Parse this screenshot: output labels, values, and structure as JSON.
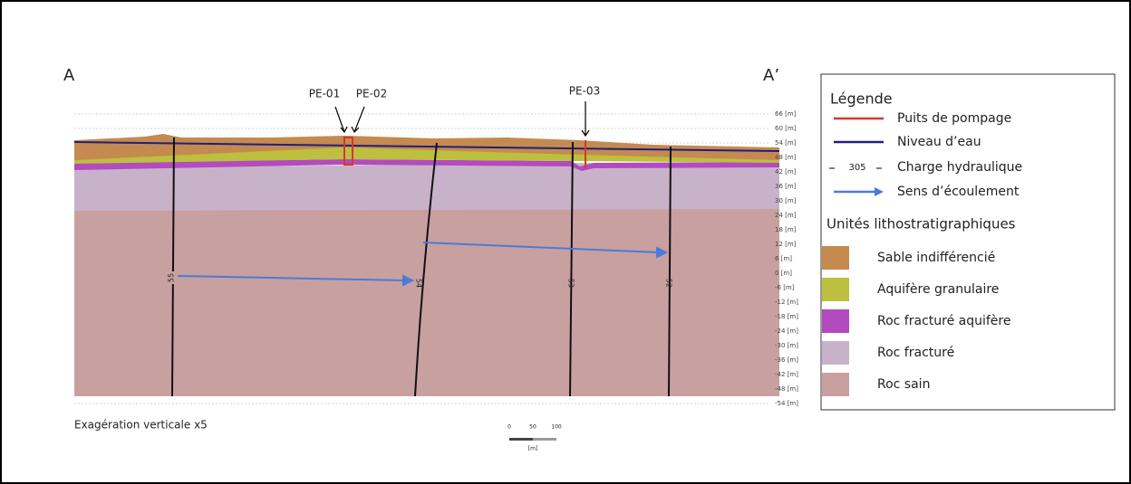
{
  "section": {
    "start_label": "A",
    "end_label": "A’",
    "wells": [
      "PE-01",
      "PE-02",
      "PE-03"
    ],
    "elevation_ticks": [
      "66 [m]",
      "60 [m]",
      "54 [m]",
      "48 [m]",
      "42 [m]",
      "36 [m]",
      "30 [m]",
      "24 [m]",
      "18 [m]",
      "12 [m]",
      "6 [m]",
      "0 [m]",
      "-6 [m]",
      "-12 [m]",
      "-18 [m]",
      "-24 [m]",
      "-30 [m]",
      "-36 [m]",
      "-42 [m]",
      "-48 [m]",
      "-54 [m]"
    ],
    "isolines": [
      "55",
      "54",
      "53",
      "52"
    ],
    "note": "Exagération verticale x5",
    "scale": {
      "ticks": [
        "0",
        "50",
        "100"
      ],
      "unit": "[m]"
    }
  },
  "legend": {
    "title": "Légende",
    "items": [
      "Puits de pompage",
      "Niveau d’eau",
      "Charge hydraulique",
      "Sens d’écoulement"
    ],
    "head_sample": "305",
    "units_title": "Unités lithostratigraphiques",
    "units": [
      {
        "name": "Sable indifférencié",
        "color": "#c48a50"
      },
      {
        "name": "Aquifère granulaire",
        "color": "#bdbf3f"
      },
      {
        "name": "Roc fracturé aquifère",
        "color": "#b24bbf"
      },
      {
        "name": "Roc fracturé",
        "color": "#c8b2c9"
      },
      {
        "name": "Roc sain",
        "color": "#c9a0a0"
      }
    ]
  }
}
